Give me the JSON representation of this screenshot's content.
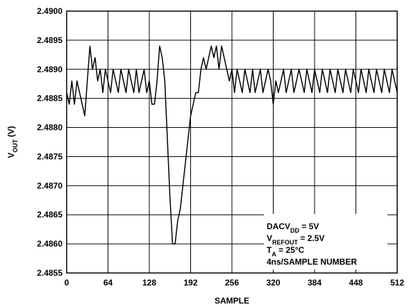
{
  "chart_data": {
    "type": "line",
    "x_label": "SAMPLE",
    "y_label": [
      "V",
      "OUT",
      " (V)"
    ],
    "annotation": [
      [
        "DACV",
        "DD",
        " = 5V"
      ],
      [
        "V",
        "REFOUT",
        " = 2.5V"
      ],
      [
        "T",
        "A",
        " = 25°C"
      ],
      [
        "4ns/SAMPLE NUMBER"
      ]
    ],
    "x": [
      0,
      4,
      8,
      12,
      16,
      20,
      24,
      28,
      32,
      36,
      40,
      44,
      48,
      52,
      56,
      60,
      64,
      68,
      72,
      76,
      80,
      84,
      88,
      92,
      96,
      100,
      104,
      108,
      112,
      116,
      120,
      124,
      128,
      132,
      136,
      140,
      144,
      148,
      152,
      156,
      160,
      164,
      168,
      172,
      176,
      180,
      184,
      188,
      192,
      196,
      200,
      204,
      208,
      212,
      216,
      220,
      224,
      228,
      232,
      236,
      240,
      244,
      248,
      252,
      256,
      260,
      264,
      268,
      272,
      276,
      280,
      284,
      288,
      292,
      296,
      300,
      304,
      308,
      312,
      316,
      320,
      324,
      328,
      332,
      336,
      340,
      344,
      348,
      352,
      356,
      360,
      364,
      368,
      372,
      376,
      380,
      384,
      388,
      392,
      396,
      400,
      404,
      408,
      412,
      416,
      420,
      424,
      428,
      432,
      436,
      440,
      444,
      448,
      452,
      456,
      460,
      464,
      468,
      472,
      476,
      480,
      484,
      488,
      492,
      496,
      500,
      504,
      508,
      512
    ],
    "series": [
      {
        "name": "VOUT",
        "color": "#000000",
        "values": [
          2.4886,
          2.4884,
          2.4888,
          2.4884,
          2.4888,
          2.4886,
          2.4884,
          2.4882,
          2.4888,
          2.4894,
          2.489,
          2.4892,
          2.4888,
          2.489,
          2.4886,
          2.489,
          2.4888,
          2.4886,
          2.489,
          2.4888,
          2.4886,
          2.489,
          2.4888,
          2.4886,
          2.489,
          2.4888,
          2.4886,
          2.489,
          2.4886,
          2.4888,
          2.489,
          2.4886,
          2.4888,
          2.4884,
          2.4884,
          2.4888,
          2.4894,
          2.4892,
          2.4888,
          2.4878,
          2.4868,
          2.486,
          2.486,
          2.4864,
          2.4866,
          2.487,
          2.4874,
          2.4878,
          2.4882,
          2.4884,
          2.4886,
          2.4886,
          2.489,
          2.4892,
          2.489,
          2.4892,
          2.4894,
          2.4892,
          2.4894,
          2.489,
          2.4894,
          2.4892,
          2.489,
          2.4888,
          2.489,
          2.4886,
          2.489,
          2.4888,
          2.4886,
          2.489,
          2.4888,
          2.4886,
          2.489,
          2.4886,
          2.4888,
          2.489,
          2.4886,
          2.4888,
          2.489,
          2.4888,
          2.4884,
          2.4888,
          2.4886,
          2.4888,
          2.489,
          2.4886,
          2.4888,
          2.489,
          2.4886,
          2.4888,
          2.489,
          2.4888,
          2.4886,
          2.489,
          2.4888,
          2.4886,
          2.489,
          2.4888,
          2.4886,
          2.489,
          2.4888,
          2.4886,
          2.489,
          2.4888,
          2.4886,
          2.489,
          2.4888,
          2.4886,
          2.489,
          2.4888,
          2.4886,
          2.489,
          2.4888,
          2.4886,
          2.489,
          2.4888,
          2.4886,
          2.489,
          2.4888,
          2.4886,
          2.489,
          2.4888,
          2.4886,
          2.489,
          2.4888,
          2.4886,
          2.489,
          2.4888,
          2.4886
        ]
      }
    ],
    "xlim": [
      0,
      512
    ],
    "xticks": [
      0,
      64,
      128,
      192,
      256,
      320,
      384,
      448,
      512
    ],
    "ylim": [
      2.4855,
      2.49
    ],
    "yticks": [
      {
        "value": 2.4855,
        "label": "2.4855"
      },
      {
        "value": 2.486,
        "label": "2.4860"
      },
      {
        "value": 2.4865,
        "label": "2.4865"
      },
      {
        "value": 2.487,
        "label": "2.4870"
      },
      {
        "value": 2.4875,
        "label": "2.4875"
      },
      {
        "value": 2.488,
        "label": "2.4880"
      },
      {
        "value": 2.4885,
        "label": "2.4885"
      },
      {
        "value": 2.489,
        "label": "2.4890"
      },
      {
        "value": 2.4895,
        "label": "2.4895"
      },
      {
        "value": 2.49,
        "label": "2.4900"
      }
    ],
    "grid": true
  }
}
